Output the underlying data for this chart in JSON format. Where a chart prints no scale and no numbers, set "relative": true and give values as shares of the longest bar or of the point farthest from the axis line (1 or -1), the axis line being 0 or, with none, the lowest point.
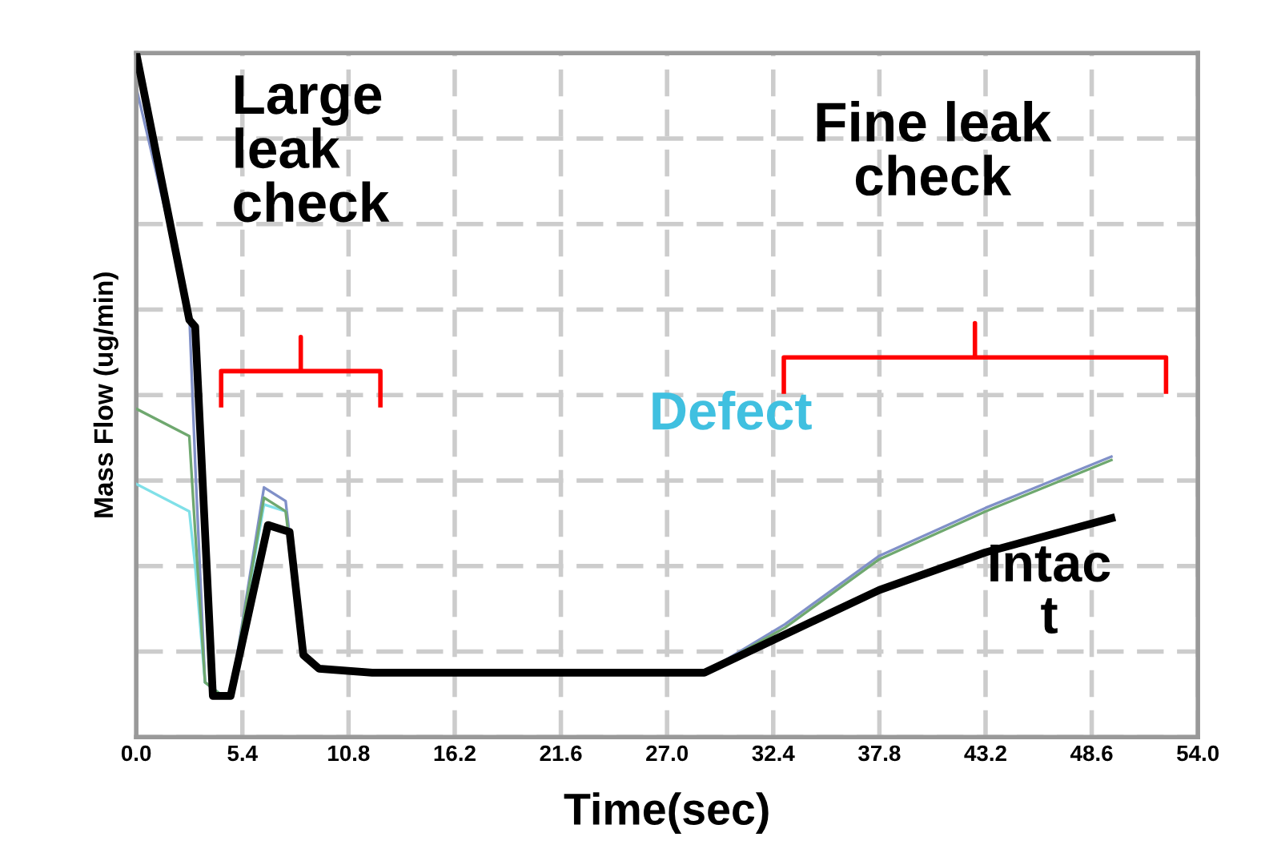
{
  "chart_data": {
    "type": "line",
    "xlabel": "Time(sec)",
    "ylabel": "Mass Flow (ug/min)",
    "relative": true,
    "xlim": [
      0,
      54
    ],
    "xticks": [
      {
        "value": 0,
        "label": "0.0"
      },
      5.4,
      10.8,
      16.2,
      21.6,
      {
        "value": 27,
        "label": "27.0"
      },
      32.4,
      37.8,
      43.2,
      48.6,
      {
        "value": 54,
        "label": "54.0"
      }
    ],
    "tick_labels": "x",
    "grid": true,
    "marker": "none",
    "line_style": "solid",
    "annotations": [
      "Large\nleak\ncheck",
      "Fine leak\ncheck",
      "Defect",
      "Intac\nt"
    ],
    "series": [
      {
        "color": "#8090c8",
        "x": [
          0,
          2.7,
          3.0,
          3.5,
          4.4,
          4.8,
          6.5,
          7.6,
          8.5,
          9.3,
          12,
          28.9,
          33,
          37.8,
          43.2,
          49.6
        ],
        "values": [
          0.95,
          0.62,
          0.4,
          0.08,
          0.06,
          0.06,
          0.365,
          0.345,
          0.12,
          0.1,
          0.094,
          0.094,
          0.165,
          0.265,
          0.335,
          0.41
        ]
      },
      {
        "color": "#80e0e8",
        "x": [
          0,
          2.7,
          3.0,
          3.5,
          4.4,
          4.8,
          6.5,
          7.6
        ],
        "values": [
          0.37,
          0.33,
          0.25,
          0.08,
          0.06,
          0.06,
          0.34,
          0.33
        ]
      },
      {
        "color": "#6fa86f",
        "x": [
          0,
          2.7,
          3.0,
          3.5,
          4.4,
          4.8,
          6.5,
          7.6,
          8.5,
          9.3,
          12,
          28.9,
          33,
          37.8,
          43.2,
          49.6
        ],
        "values": [
          0.48,
          0.44,
          0.3,
          0.08,
          0.06,
          0.06,
          0.35,
          0.33,
          0.12,
          0.1,
          0.094,
          0.094,
          0.16,
          0.26,
          0.33,
          0.405
        ]
      },
      {
        "color": "#000000",
        "x": [
          0,
          2.7,
          3.0,
          3.9,
          4.4,
          4.8,
          6.7,
          7.8,
          8.5,
          9.3,
          12,
          28.9,
          33,
          37.8,
          43.2,
          49.6
        ],
        "values": [
          1.0,
          0.61,
          0.6,
          0.06,
          0.06,
          0.06,
          0.31,
          0.3,
          0.12,
          0.1,
          0.094,
          0.094,
          0.15,
          0.215,
          0.27,
          0.32
        ]
      }
    ]
  }
}
